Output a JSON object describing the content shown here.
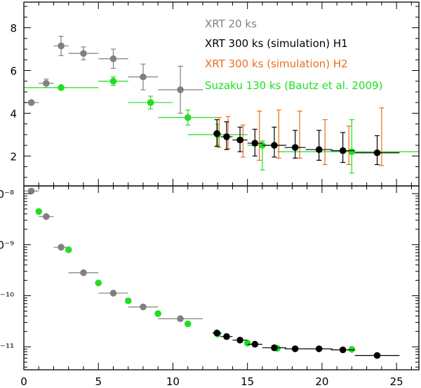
{
  "chart_data": [
    {
      "type": "scatter",
      "panel": "top",
      "title": "",
      "xlabel": "",
      "ylabel": "",
      "xlim": [
        0,
        26.5
      ],
      "ylim": [
        0.6,
        9.2
      ],
      "yticks": [
        {
          "value": 2,
          "label": "2"
        },
        {
          "value": 4,
          "label": "4"
        },
        {
          "value": 6,
          "label": "6"
        },
        {
          "value": 8,
          "label": "8"
        }
      ],
      "legend_position": "top-right",
      "legend": [
        {
          "label": "XRT 20 ks",
          "color": "#808080"
        },
        {
          "label": "XRT 300 ks (simulation) H1",
          "color": "#000000"
        },
        {
          "label": "XRT 300 ks (simulation) H2",
          "color": "#e8701a"
        },
        {
          "label": "Suzaku 130 ks (Bautz et al. 2009)",
          "color": "#22dd22"
        }
      ],
      "series": [
        {
          "name": "XRT 20 ks",
          "color": "#808080",
          "points": [
            {
              "x": 0.5,
              "y": 4.5,
              "xerr": [
                0.5,
                0.5
              ],
              "yerr": [
                0.1,
                0.1
              ]
            },
            {
              "x": 1.5,
              "y": 5.4,
              "xerr": [
                0.5,
                0.5
              ],
              "yerr": [
                0.2,
                0.2
              ]
            },
            {
              "x": 2.5,
              "y": 7.15,
              "xerr": [
                0.5,
                0.5
              ],
              "yerr": [
                0.45,
                0.45
              ]
            },
            {
              "x": 4.0,
              "y": 6.8,
              "xerr": [
                1.0,
                1.0
              ],
              "yerr": [
                0.3,
                0.3
              ]
            },
            {
              "x": 6.0,
              "y": 6.55,
              "xerr": [
                1.0,
                1.0
              ],
              "yerr": [
                0.45,
                0.45
              ]
            },
            {
              "x": 8.0,
              "y": 5.7,
              "xerr": [
                1.0,
                1.0
              ],
              "yerr": [
                0.6,
                0.6
              ]
            },
            {
              "x": 10.5,
              "y": 5.1,
              "xerr": [
                1.5,
                1.5
              ],
              "yerr": [
                1.1,
                1.1
              ]
            }
          ]
        },
        {
          "name": "Suzaku 130 ks (Bautz et al. 2009)",
          "color": "#22dd22",
          "points": [
            {
              "x": 2.5,
              "y": 5.2,
              "xerr": [
                2.5,
                2.5
              ],
              "yerr": [
                0,
                0
              ]
            },
            {
              "x": 6.0,
              "y": 5.5,
              "xerr": [
                1.0,
                1.0
              ],
              "yerr": [
                0.2,
                0.2
              ]
            },
            {
              "x": 8.5,
              "y": 4.5,
              "xerr": [
                1.5,
                1.5
              ],
              "yerr": [
                0.3,
                0.3
              ]
            },
            {
              "x": 11.0,
              "y": 3.8,
              "xerr": [
                2.0,
                2.0
              ],
              "yerr": [
                0.35,
                0.35
              ]
            },
            {
              "x": 13.0,
              "y": 3.0,
              "xerr": [
                2.0,
                2.0
              ],
              "yerr": [
                0.5,
                0.5
              ]
            },
            {
              "x": 16.0,
              "y": 2.5,
              "xerr": [
                1.0,
                1.0
              ],
              "yerr": [
                1.15,
                0.2
              ]
            },
            {
              "x": 22.0,
              "y": 2.2,
              "xerr": [
                5.0,
                4.5
              ],
              "yerr": [
                1.0,
                1.5
              ]
            }
          ]
        },
        {
          "name": "XRT 300 ks (simulation) H2",
          "color": "#e8701a",
          "points": [
            {
              "x": 13.1,
              "y": 3.0,
              "xerr": [
                0,
                0
              ],
              "yerr": [
                0.6,
                0.8
              ]
            },
            {
              "x": 13.7,
              "y": 2.95,
              "xerr": [
                0,
                0
              ],
              "yerr": [
                0.6,
                0.9
              ]
            },
            {
              "x": 14.7,
              "y": 2.7,
              "xerr": [
                0,
                0
              ],
              "yerr": [
                0.75,
                0.75
              ]
            },
            {
              "x": 15.8,
              "y": 2.6,
              "xerr": [
                0,
                0
              ],
              "yerr": [
                0.8,
                1.5
              ]
            },
            {
              "x": 17.1,
              "y": 2.5,
              "xerr": [
                0,
                0
              ],
              "yerr": [
                0.6,
                1.65
              ]
            },
            {
              "x": 18.5,
              "y": 2.4,
              "xerr": [
                0,
                0
              ],
              "yerr": [
                0.5,
                1.7
              ]
            },
            {
              "x": 20.2,
              "y": 2.3,
              "xerr": [
                0,
                0
              ],
              "yerr": [
                0.7,
                1.4
              ]
            },
            {
              "x": 21.8,
              "y": 2.2,
              "xerr": [
                0,
                0
              ],
              "yerr": [
                0.6,
                1.2
              ]
            },
            {
              "x": 24.0,
              "y": 2.15,
              "xerr": [
                0,
                0
              ],
              "yerr": [
                0.6,
                2.1
              ]
            }
          ]
        },
        {
          "name": "XRT 300 ks (simulation) H1",
          "color": "#000000",
          "points": [
            {
              "x": 12.95,
              "y": 3.05,
              "xerr": [
                0.25,
                0.25
              ],
              "yerr": [
                0.6,
                0.65
              ]
            },
            {
              "x": 13.6,
              "y": 2.9,
              "xerr": [
                0.4,
                0.4
              ],
              "yerr": [
                0.6,
                0.7
              ]
            },
            {
              "x": 14.5,
              "y": 2.75,
              "xerr": [
                0.5,
                0.5
              ],
              "yerr": [
                0.55,
                0.6
              ]
            },
            {
              "x": 15.5,
              "y": 2.6,
              "xerr": [
                0.5,
                0.5
              ],
              "yerr": [
                0.6,
                0.65
              ]
            },
            {
              "x": 16.8,
              "y": 2.5,
              "xerr": [
                0.8,
                0.8
              ],
              "yerr": [
                0.55,
                0.85
              ]
            },
            {
              "x": 18.2,
              "y": 2.4,
              "xerr": [
                0.7,
                0.7
              ],
              "yerr": [
                0.5,
                0.8
              ]
            },
            {
              "x": 19.8,
              "y": 2.3,
              "xerr": [
                0.9,
                0.9
              ],
              "yerr": [
                0.5,
                0.9
              ]
            },
            {
              "x": 21.4,
              "y": 2.25,
              "xerr": [
                0.8,
                0.8
              ],
              "yerr": [
                0.55,
                0.85
              ]
            },
            {
              "x": 23.7,
              "y": 2.15,
              "xerr": [
                1.5,
                1.5
              ],
              "yerr": [
                0.55,
                0.8
              ]
            }
          ]
        }
      ]
    },
    {
      "type": "scatter",
      "panel": "bottom",
      "title": "",
      "xlabel": "",
      "ylabel": "",
      "xscale": "linear",
      "yscale": "log",
      "xlim": [
        0,
        26.5
      ],
      "ylim_log10": [
        -11.45,
        -7.85
      ],
      "xticks": [
        {
          "value": 0,
          "label": "0"
        },
        {
          "value": 5,
          "label": "5"
        },
        {
          "value": 10,
          "label": "10"
        },
        {
          "value": 15,
          "label": "15"
        },
        {
          "value": 20,
          "label": "20"
        },
        {
          "value": 25,
          "label": "25"
        }
      ],
      "yticks": [
        {
          "log10": -8,
          "label": "0⁻⁸"
        },
        {
          "log10": -9,
          "label": "0⁻⁹"
        },
        {
          "log10": -10,
          "label": ")⁻¹⁰"
        },
        {
          "log10": -11,
          "label": ")⁻¹¹"
        }
      ],
      "series": [
        {
          "name": "XRT 20 ks",
          "color": "#808080",
          "points": [
            {
              "x": 0.5,
              "log10y": -7.95,
              "xerr": [
                0.5,
                0.5
              ]
            },
            {
              "x": 1.5,
              "log10y": -8.45,
              "xerr": [
                0.5,
                0.5
              ]
            },
            {
              "x": 2.5,
              "log10y": -9.05,
              "xerr": [
                0.5,
                0.5
              ]
            },
            {
              "x": 4.0,
              "log10y": -9.55,
              "xerr": [
                1.0,
                1.0
              ]
            },
            {
              "x": 6.0,
              "log10y": -9.95,
              "xerr": [
                1.0,
                1.0
              ]
            },
            {
              "x": 8.0,
              "log10y": -10.22,
              "xerr": [
                1.0,
                1.0
              ]
            },
            {
              "x": 10.5,
              "log10y": -10.45,
              "xerr": [
                1.5,
                1.5
              ]
            }
          ]
        },
        {
          "name": "Suzaku 130 ks (Bautz et al. 2009)",
          "color": "#22dd22",
          "points": [
            {
              "x": 1.0,
              "log10y": -8.35,
              "xerr": [
                0,
                0
              ]
            },
            {
              "x": 3.0,
              "log10y": -9.1,
              "xerr": [
                0,
                0
              ]
            },
            {
              "x": 5.0,
              "log10y": -9.75,
              "xerr": [
                0,
                0
              ]
            },
            {
              "x": 7.0,
              "log10y": -10.1,
              "xerr": [
                0,
                0
              ]
            },
            {
              "x": 9.0,
              "log10y": -10.35,
              "xerr": [
                0,
                0
              ]
            },
            {
              "x": 11.0,
              "log10y": -10.55,
              "xerr": [
                0,
                0
              ]
            },
            {
              "x": 13.0,
              "log10y": -10.75,
              "xerr": [
                0,
                0
              ]
            },
            {
              "x": 15.0,
              "log10y": -10.93,
              "xerr": [
                0,
                0
              ]
            },
            {
              "x": 17.0,
              "log10y": -11.03,
              "xerr": [
                0,
                0
              ]
            },
            {
              "x": 22.0,
              "log10y": -11.05,
              "xerr": [
                0,
                0
              ]
            }
          ]
        },
        {
          "name": "XRT 300 ks (simulation) H1",
          "color": "#000000",
          "points": [
            {
              "x": 12.95,
              "log10y": -10.73,
              "xerr": [
                0.3,
                0.3
              ]
            },
            {
              "x": 13.6,
              "log10y": -10.8,
              "xerr": [
                0.4,
                0.4
              ]
            },
            {
              "x": 14.5,
              "log10y": -10.87,
              "xerr": [
                0.5,
                0.5
              ]
            },
            {
              "x": 15.5,
              "log10y": -10.95,
              "xerr": [
                0.5,
                0.5
              ]
            },
            {
              "x": 16.8,
              "log10y": -11.02,
              "xerr": [
                0.8,
                0.8
              ]
            },
            {
              "x": 18.2,
              "log10y": -11.04,
              "xerr": [
                0.7,
                0.7
              ]
            },
            {
              "x": 19.8,
              "log10y": -11.04,
              "xerr": [
                0.9,
                0.9
              ]
            },
            {
              "x": 21.4,
              "log10y": -11.06,
              "xerr": [
                0.8,
                0.8
              ]
            },
            {
              "x": 23.7,
              "log10y": -11.17,
              "xerr": [
                1.5,
                1.5
              ]
            }
          ]
        }
      ]
    }
  ]
}
